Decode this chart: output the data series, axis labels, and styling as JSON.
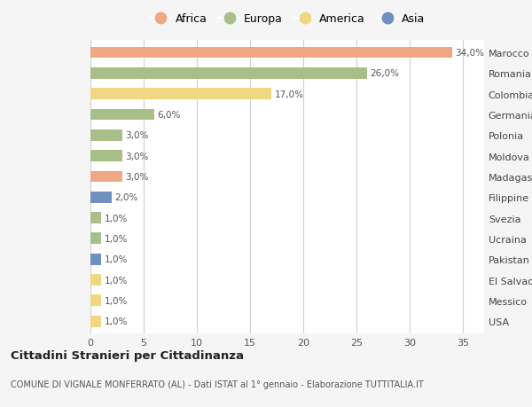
{
  "countries": [
    "Marocco",
    "Romania",
    "Colombia",
    "Germania",
    "Polonia",
    "Moldova",
    "Madagascar",
    "Filippine",
    "Svezia",
    "Ucraina",
    "Pakistan",
    "El Salvador",
    "Messico",
    "USA"
  ],
  "values": [
    34.0,
    26.0,
    17.0,
    6.0,
    3.0,
    3.0,
    3.0,
    2.0,
    1.0,
    1.0,
    1.0,
    1.0,
    1.0,
    1.0
  ],
  "continents": [
    "Africa",
    "Europa",
    "America",
    "Europa",
    "Europa",
    "Europa",
    "Africa",
    "Asia",
    "Europa",
    "Europa",
    "Asia",
    "America",
    "America",
    "America"
  ],
  "colors": {
    "Africa": "#F0A882",
    "Europa": "#A8BF8A",
    "America": "#F0D882",
    "Asia": "#7090C0"
  },
  "legend_order": [
    "Africa",
    "Europa",
    "America",
    "Asia"
  ],
  "title": "Cittadini Stranieri per Cittadinanza",
  "subtitle": "COMUNE DI VIGNALE MONFERRATO (AL) - Dati ISTAT al 1° gennaio - Elaborazione TUTTITALIA.IT",
  "xlim": [
    0,
    37
  ],
  "xticks": [
    0,
    5,
    10,
    15,
    20,
    25,
    30,
    35
  ],
  "bg_color": "#f5f5f5",
  "bar_bg_color": "#ffffff",
  "grid_color": "#d0d0d0"
}
